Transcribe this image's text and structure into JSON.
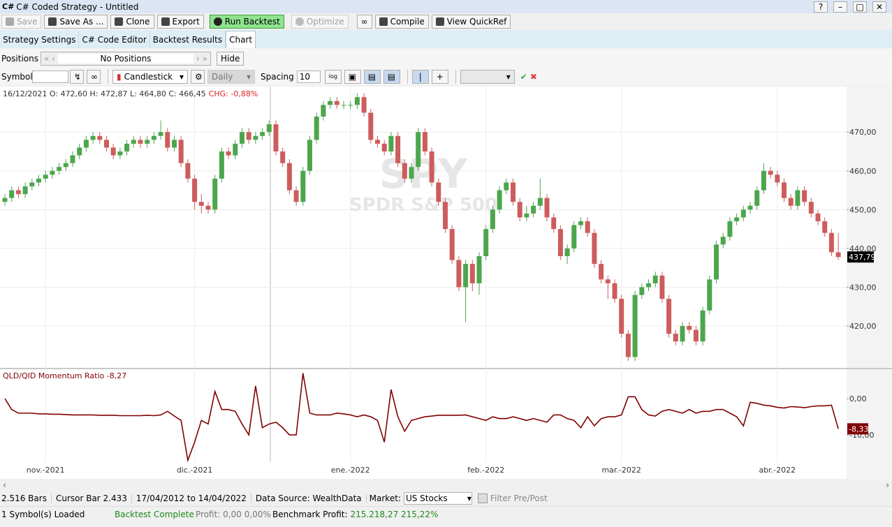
{
  "window": {
    "icon": "C#",
    "title": "C# Coded Strategy - Untitled",
    "help": "?"
  },
  "toolbar": [
    "Save",
    "Save As ...",
    "Clone",
    "Export",
    "Run Backtest",
    "Optimize",
    "Compile",
    "View QuickRef"
  ],
  "tabs": [
    "Strategy Settings",
    "C# Code Editor",
    "Backtest Results",
    "Chart"
  ],
  "positions": {
    "label": "Positions",
    "value": "No Positions",
    "button": "Hide"
  },
  "symbol_bar": {
    "label": "Symbol",
    "chart_style": "Candlestick",
    "scale": "Daily",
    "spacing_label": "Spacing",
    "spacing": "10"
  },
  "status1": {
    "bars": "2.516 Bars",
    "cursor": "Cursor Bar 2.433",
    "range": "17/04/2012 to 14/04/2022",
    "source": "Data Source: WealthData",
    "market_label": "Market:",
    "market": "US Stocks",
    "filter": "Filter Pre/Post"
  },
  "status2": {
    "loaded": "1 Symbol(s) Loaded",
    "state": "Backtest Complete",
    "profit": "Profit: 0,00 0,00%",
    "benchmark_label": "Benchmark Profit:",
    "benchmark": "215.218,27 215,22%"
  },
  "chart_data": [
    {
      "type": "candlestick",
      "header": "16/12/2021 O: 472,60 H: 472,87 L: 464,80 C: 466,45",
      "change": "CHG: -0,88%",
      "watermark": "SPY",
      "watermark_sub": "SPDR S&P 500",
      "up_color": "#4ca64c",
      "down_color": "#cd5c5c",
      "ylim": [
        409.2,
        481.2
      ],
      "yticks": [
        {
          "value": 420,
          "label": "420,00"
        },
        {
          "value": 430,
          "label": "430,00"
        },
        {
          "value": 440,
          "label": "440,00"
        },
        {
          "value": 450,
          "label": "450,00"
        },
        {
          "value": 460,
          "label": "460,00"
        },
        {
          "value": 470,
          "label": "470,00"
        }
      ],
      "grid": true,
      "last_close_label": "437,79",
      "categories": [
        null,
        null,
        null,
        null,
        null,
        null,
        "nov.-2021",
        null,
        null,
        null,
        null,
        null,
        null,
        null,
        null,
        null,
        null,
        null,
        null,
        null,
        null,
        null,
        null,
        null,
        null,
        null,
        null,
        null,
        "dic.-2021",
        null,
        null,
        null,
        null,
        null,
        null,
        null,
        null,
        null,
        null,
        null,
        null,
        null,
        null,
        null,
        null,
        null,
        null,
        null,
        null,
        null,
        null,
        "ene.-2022",
        null,
        null,
        null,
        null,
        null,
        null,
        null,
        null,
        null,
        null,
        null,
        null,
        null,
        null,
        null,
        null,
        null,
        null,
        null,
        "feb.-2022",
        null,
        null,
        null,
        null,
        null,
        null,
        null,
        null,
        null,
        null,
        null,
        null,
        null,
        null,
        null,
        null,
        null,
        null,
        null,
        "mar.-2022",
        null,
        null,
        null,
        null,
        null,
        null,
        null,
        null,
        null,
        null,
        null,
        null,
        null,
        null,
        null,
        null,
        null,
        null,
        null,
        null,
        null,
        null,
        "abr.-2022",
        null,
        null,
        null,
        null,
        null,
        null,
        null,
        null,
        null
      ],
      "open": [
        452,
        453,
        455,
        454,
        456,
        457,
        458,
        459,
        460,
        461,
        462,
        464,
        466,
        468,
        469,
        468,
        466,
        464,
        465,
        467,
        468,
        467,
        468,
        469,
        470,
        466,
        468,
        462,
        458,
        452,
        451,
        450,
        458,
        465,
        464,
        467,
        470,
        468,
        469,
        470,
        472,
        465,
        462,
        455,
        452,
        460,
        468,
        474,
        477,
        478,
        477,
        477,
        477,
        479,
        475,
        468,
        467,
        465,
        469,
        462,
        458,
        461,
        470,
        465,
        457,
        452,
        445,
        437,
        430,
        436,
        431,
        438,
        445,
        450,
        455,
        457,
        452,
        448,
        449,
        451,
        453,
        448,
        445,
        438,
        440,
        446,
        447,
        444,
        436,
        432,
        431,
        427,
        418,
        412,
        428,
        430,
        431,
        433,
        427,
        418,
        416,
        420,
        419,
        416,
        424,
        432,
        441,
        443,
        447,
        448,
        450,
        451,
        455,
        460,
        459,
        457,
        453,
        451,
        455,
        452,
        449,
        447,
        444,
        439
      ],
      "high": [
        454,
        456,
        456,
        457,
        458,
        459,
        460,
        461,
        462,
        463,
        465,
        467,
        469,
        470,
        470,
        469,
        467,
        466,
        468,
        469,
        469,
        469,
        470,
        473,
        471,
        469,
        469,
        463,
        459,
        454,
        452,
        459,
        466,
        466,
        468,
        471,
        471,
        470,
        471,
        473,
        473,
        466,
        463,
        456,
        461,
        469,
        475,
        478,
        479,
        479,
        478,
        478,
        480,
        480,
        476,
        469,
        468,
        470,
        470,
        463,
        462,
        471,
        471,
        466,
        458,
        453,
        446,
        438,
        437,
        437,
        439,
        446,
        451,
        456,
        458,
        458,
        453,
        451,
        452,
        458,
        454,
        449,
        446,
        441,
        447,
        448,
        448,
        445,
        437,
        433,
        432,
        428,
        419,
        429,
        431,
        432,
        434,
        434,
        428,
        419,
        421,
        421,
        420,
        425,
        433,
        442,
        444,
        448,
        449,
        451,
        452,
        456,
        462,
        461,
        460,
        458,
        454,
        456,
        456,
        453,
        450,
        448,
        445,
        444
      ],
      "low": [
        451,
        452,
        453,
        453,
        455,
        456,
        457,
        458,
        459,
        460,
        461,
        463,
        465,
        467,
        467,
        465,
        463,
        463,
        464,
        466,
        466,
        466,
        467,
        468,
        465,
        465,
        461,
        457,
        450,
        449,
        449,
        449,
        457,
        463,
        463,
        466,
        467,
        467,
        468,
        469,
        464,
        461,
        454,
        451,
        451,
        459,
        467,
        473,
        476,
        476,
        476,
        476,
        476,
        474,
        467,
        466,
        464,
        464,
        461,
        457,
        457,
        460,
        464,
        456,
        451,
        444,
        436,
        429,
        421,
        429,
        428,
        437,
        444,
        449,
        454,
        451,
        447,
        447,
        448,
        450,
        447,
        444,
        437,
        436,
        439,
        445,
        443,
        435,
        431,
        427,
        426,
        417,
        411,
        411,
        427,
        429,
        430,
        426,
        417,
        415,
        415,
        418,
        415,
        415,
        423,
        431,
        440,
        442,
        446,
        447,
        449,
        450,
        454,
        458,
        456,
        452,
        450,
        450,
        451,
        448,
        446,
        443,
        438,
        437
      ],
      "close": [
        453,
        455,
        454,
        456,
        457,
        458,
        459,
        460,
        461,
        462,
        464,
        466,
        468,
        469,
        468,
        466,
        464,
        465,
        467,
        468,
        467,
        468,
        469,
        470,
        466,
        468,
        462,
        458,
        452,
        451,
        450,
        458,
        465,
        464,
        467,
        470,
        468,
        469,
        470,
        472,
        465,
        462,
        455,
        452,
        460,
        468,
        474,
        477,
        478,
        477,
        477,
        477,
        479,
        475,
        468,
        467,
        465,
        469,
        462,
        458,
        461,
        470,
        465,
        457,
        452,
        445,
        437,
        430,
        436,
        431,
        438,
        445,
        450,
        455,
        457,
        452,
        448,
        449,
        451,
        453,
        448,
        445,
        438,
        440,
        446,
        447,
        444,
        436,
        432,
        431,
        427,
        418,
        412,
        428,
        430,
        431,
        433,
        427,
        418,
        416,
        420,
        419,
        416,
        424,
        432,
        441,
        443,
        447,
        448,
        450,
        451,
        455,
        460,
        459,
        457,
        453,
        451,
        455,
        452,
        449,
        447,
        444,
        439,
        437.79
      ]
    },
    {
      "type": "line",
      "title": "QLD/QID Momentum Ratio -8,27",
      "color": "#800000",
      "ylim": [
        -17.5,
        8.1
      ],
      "yticks": [
        {
          "value": -10,
          "label": "-10,00"
        },
        {
          "value": 0,
          "label": "0,00"
        }
      ],
      "last_value_label": "-8,33",
      "values": [
        0,
        -3,
        -4,
        -4,
        -4,
        -4.2,
        -4.2,
        -4.3,
        -4.3,
        -4.4,
        -4.5,
        -4.5,
        -4.5,
        -4.5,
        -4.6,
        -4.6,
        -4.6,
        -4.7,
        -4.7,
        -4.7,
        -4.7,
        -4.6,
        -4.7,
        -4.5,
        -3.5,
        -4.8,
        -6,
        -17,
        -12,
        -6,
        -7,
        2,
        -3,
        -3,
        -3.5,
        -7,
        -10,
        3.5,
        -8,
        -7,
        -6.5,
        -8,
        -10,
        -10,
        7,
        -4,
        -4.5,
        -4.5,
        -4.5,
        -4,
        -4.2,
        -4.5,
        -5,
        -4.5,
        -5,
        -6,
        -12,
        2.5,
        -5,
        -9,
        -6,
        -5.5,
        -5,
        -4.8,
        -4.6,
        -4.6,
        -4.6,
        -4.6,
        -4.5,
        -5,
        -5.5,
        -6,
        -5,
        -5.5,
        -5.5,
        -5,
        -5.5,
        -6,
        -5.5,
        -6,
        -6.5,
        -4.5,
        -4.5,
        -5.5,
        -6,
        -8,
        -5,
        -7.5,
        -5.5,
        -5,
        -5,
        -4.5,
        0.5,
        0.5,
        -3,
        -4.5,
        -4.8,
        -3.5,
        -3,
        -3.5,
        -4,
        -3,
        -4,
        -3.5,
        -3.5,
        -3,
        -3,
        -4,
        -5,
        -7.5,
        -1,
        -1.3,
        -1.8,
        -2,
        -2.4,
        -2.6,
        -2.2,
        -2.3,
        -2.5,
        -2.2,
        -2,
        -2,
        -1.8,
        -8.33
      ]
    }
  ]
}
